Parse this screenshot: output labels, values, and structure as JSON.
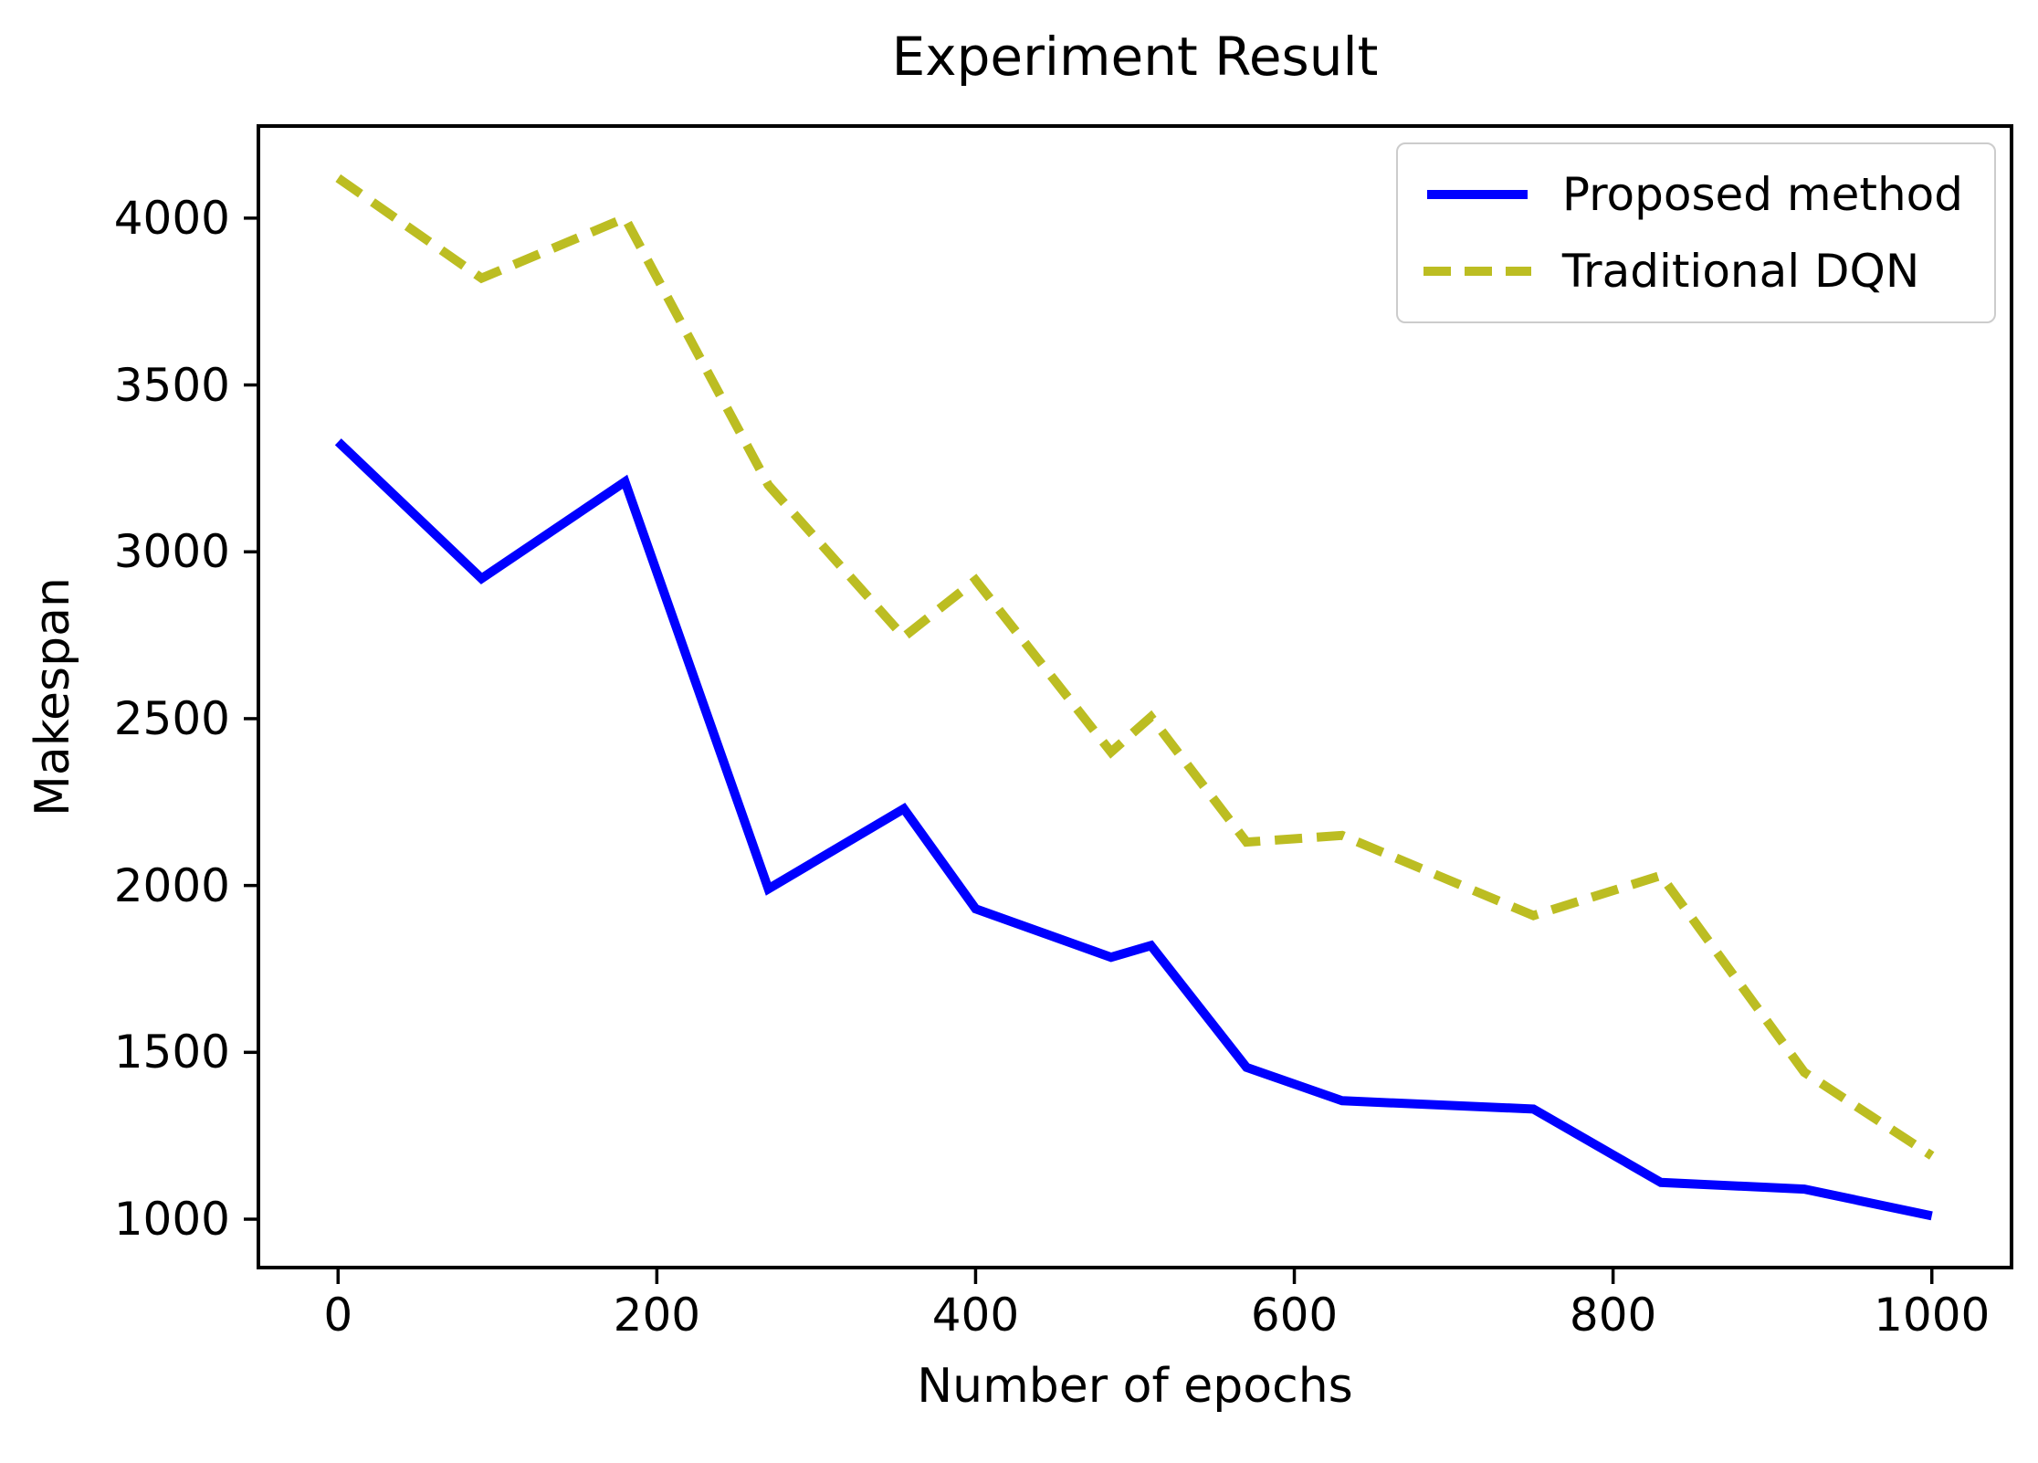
{
  "figure": {
    "title": "Experiment Result",
    "xlabel": "Number of epochs",
    "ylabel": "Makespan"
  },
  "chart_data": {
    "type": "line",
    "title": "Experiment Result",
    "xlabel": "Number of epochs",
    "ylabel": "Makespan",
    "x": [
      0,
      90,
      180,
      270,
      355,
      400,
      485,
      510,
      570,
      630,
      750,
      830,
      920,
      1000
    ],
    "series": [
      {
        "name": "Proposed method",
        "color": "#0000ff",
        "style": "solid",
        "values": [
          3330,
          2920,
          3210,
          1990,
          2230,
          1930,
          1785,
          1820,
          1455,
          1355,
          1330,
          1110,
          1090,
          1010
        ]
      },
      {
        "name": "Traditional DQN",
        "color": "#bcbd22",
        "style": "dashed",
        "values": [
          4120,
          3820,
          4000,
          3200,
          2745,
          2915,
          2400,
          2505,
          2130,
          2150,
          1910,
          2030,
          1440,
          1190
        ]
      }
    ],
    "x_ticks": [
      0,
      200,
      400,
      600,
      800,
      1000
    ],
    "y_ticks": [
      1000,
      1500,
      2000,
      2500,
      3000,
      3500,
      4000
    ],
    "xlim": [
      -50,
      1050
    ],
    "ylim": [
      855,
      4276
    ],
    "grid": false,
    "legend_position": "upper right",
    "axis_color": "#000000"
  },
  "legend": {
    "items": [
      {
        "label": "Proposed method",
        "color": "#0000ff",
        "style": "solid"
      },
      {
        "label": "Traditional DQN",
        "color": "#bcbd22",
        "style": "dashed"
      }
    ]
  }
}
